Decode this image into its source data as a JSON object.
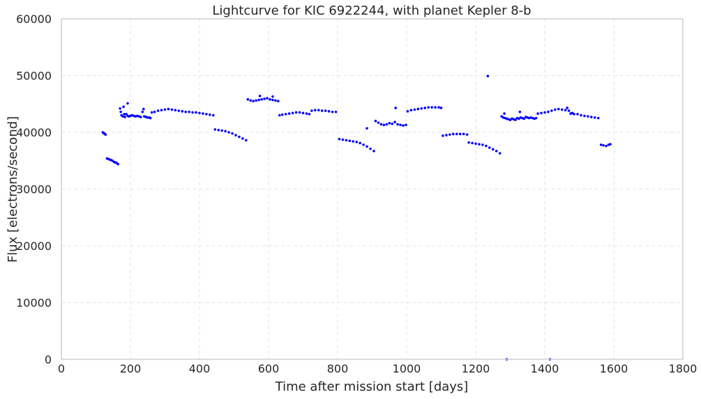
{
  "chart_data": {
    "type": "scatter",
    "title": "Lightcurve for KIC 6922244, with planet Kepler 8-b",
    "xlabel": "Time after mission start [days]",
    "ylabel": "Flux [electrons/second]",
    "xlim": [
      0,
      1800
    ],
    "ylim": [
      0,
      60000
    ],
    "x_ticks": [
      0,
      200,
      400,
      600,
      800,
      1000,
      1200,
      1400,
      1600,
      1800
    ],
    "x_tick_labels": [
      "0",
      "200",
      "400",
      "600",
      "800",
      "1000",
      "1200",
      "1400",
      "1600",
      "1800"
    ],
    "y_ticks": [
      0,
      10000,
      20000,
      30000,
      40000,
      50000,
      60000
    ],
    "y_tick_labels": [
      "0",
      "10000",
      "20000",
      "30000",
      "40000",
      "50000",
      "60000"
    ],
    "grid": true,
    "marker_color": "#0000ff",
    "series": [
      {
        "values": [
          [
            120,
            40000
          ],
          [
            122,
            39900
          ],
          [
            124,
            39800
          ],
          [
            126,
            39700
          ],
          [
            128,
            39600
          ],
          [
            132,
            35400
          ],
          [
            136,
            35300
          ],
          [
            140,
            35200
          ],
          [
            144,
            35100
          ],
          [
            148,
            35000
          ],
          [
            152,
            34800
          ],
          [
            156,
            34700
          ],
          [
            160,
            34600
          ],
          [
            164,
            34400
          ],
          [
            170,
            44200
          ],
          [
            172,
            43600
          ],
          [
            174,
            43000
          ],
          [
            178,
            42800
          ],
          [
            180,
            44500
          ],
          [
            182,
            43200
          ],
          [
            184,
            42700
          ],
          [
            188,
            43200
          ],
          [
            192,
            42900
          ],
          [
            196,
            42800
          ],
          [
            200,
            42900
          ],
          [
            205,
            43000
          ],
          [
            210,
            42900
          ],
          [
            215,
            42800
          ],
          [
            220,
            42900
          ],
          [
            225,
            42800
          ],
          [
            230,
            42700
          ],
          [
            235,
            43600
          ],
          [
            240,
            42800
          ],
          [
            245,
            42700
          ],
          [
            250,
            42600
          ],
          [
            255,
            42600
          ],
          [
            258,
            42500
          ],
          [
            262,
            43500
          ],
          [
            270,
            43600
          ],
          [
            280,
            43800
          ],
          [
            290,
            43900
          ],
          [
            300,
            44000
          ],
          [
            310,
            44100
          ],
          [
            320,
            44000
          ],
          [
            330,
            43900
          ],
          [
            340,
            43800
          ],
          [
            350,
            43700
          ],
          [
            360,
            43600
          ],
          [
            370,
            43600
          ],
          [
            380,
            43500
          ],
          [
            390,
            43500
          ],
          [
            400,
            43400
          ],
          [
            410,
            43300
          ],
          [
            420,
            43200
          ],
          [
            430,
            43100
          ],
          [
            440,
            43000
          ],
          [
            445,
            40500
          ],
          [
            455,
            40400
          ],
          [
            465,
            40300
          ],
          [
            475,
            40200
          ],
          [
            485,
            40000
          ],
          [
            495,
            39800
          ],
          [
            505,
            39500
          ],
          [
            515,
            39200
          ],
          [
            525,
            38900
          ],
          [
            535,
            38600
          ],
          [
            540,
            45800
          ],
          [
            548,
            45600
          ],
          [
            556,
            45500
          ],
          [
            564,
            45600
          ],
          [
            572,
            45700
          ],
          [
            580,
            45800
          ],
          [
            588,
            45900
          ],
          [
            596,
            46000
          ],
          [
            604,
            45800
          ],
          [
            612,
            45700
          ],
          [
            620,
            45600
          ],
          [
            628,
            45500
          ],
          [
            632,
            43000
          ],
          [
            640,
            43100
          ],
          [
            650,
            43200
          ],
          [
            660,
            43300
          ],
          [
            670,
            43400
          ],
          [
            680,
            43500
          ],
          [
            690,
            43500
          ],
          [
            700,
            43400
          ],
          [
            710,
            43300
          ],
          [
            718,
            43200
          ],
          [
            725,
            43800
          ],
          [
            735,
            43900
          ],
          [
            745,
            43900
          ],
          [
            755,
            43800
          ],
          [
            765,
            43800
          ],
          [
            775,
            43700
          ],
          [
            785,
            43600
          ],
          [
            795,
            43600
          ],
          [
            805,
            38800
          ],
          [
            815,
            38700
          ],
          [
            825,
            38600
          ],
          [
            835,
            38500
          ],
          [
            845,
            38400
          ],
          [
            855,
            38300
          ],
          [
            865,
            38100
          ],
          [
            875,
            37800
          ],
          [
            885,
            37500
          ],
          [
            895,
            37100
          ],
          [
            905,
            36700
          ],
          [
            910,
            42000
          ],
          [
            918,
            41700
          ],
          [
            926,
            41400
          ],
          [
            934,
            41300
          ],
          [
            942,
            41400
          ],
          [
            950,
            41600
          ],
          [
            958,
            41500
          ],
          [
            966,
            41800
          ],
          [
            974,
            41400
          ],
          [
            982,
            41300
          ],
          [
            990,
            41200
          ],
          [
            998,
            41300
          ],
          [
            1003,
            43700
          ],
          [
            1013,
            43900
          ],
          [
            1023,
            44000
          ],
          [
            1033,
            44100
          ],
          [
            1043,
            44200
          ],
          [
            1053,
            44300
          ],
          [
            1063,
            44400
          ],
          [
            1073,
            44400
          ],
          [
            1083,
            44400
          ],
          [
            1093,
            44400
          ],
          [
            1100,
            44300
          ],
          [
            1105,
            39400
          ],
          [
            1115,
            39500
          ],
          [
            1125,
            39600
          ],
          [
            1135,
            39700
          ],
          [
            1145,
            39700
          ],
          [
            1155,
            39700
          ],
          [
            1165,
            39700
          ],
          [
            1175,
            39600
          ],
          [
            1180,
            38200
          ],
          [
            1190,
            38100
          ],
          [
            1200,
            38000
          ],
          [
            1210,
            37900
          ],
          [
            1220,
            37800
          ],
          [
            1230,
            37600
          ],
          [
            1240,
            37300
          ],
          [
            1250,
            37000
          ],
          [
            1260,
            36700
          ],
          [
            1270,
            36300
          ],
          [
            1275,
            42800
          ],
          [
            1280,
            42600
          ],
          [
            1285,
            42500
          ],
          [
            1290,
            42400
          ],
          [
            1295,
            42300
          ],
          [
            1300,
            42200
          ],
          [
            1305,
            42400
          ],
          [
            1310,
            42300
          ],
          [
            1315,
            42200
          ],
          [
            1320,
            42500
          ],
          [
            1325,
            42400
          ],
          [
            1330,
            42600
          ],
          [
            1335,
            42500
          ],
          [
            1340,
            42400
          ],
          [
            1345,
            42700
          ],
          [
            1350,
            42600
          ],
          [
            1355,
            42500
          ],
          [
            1360,
            42600
          ],
          [
            1365,
            42500
          ],
          [
            1370,
            42400
          ],
          [
            1375,
            42500
          ],
          [
            1380,
            43300
          ],
          [
            1390,
            43400
          ],
          [
            1400,
            43500
          ],
          [
            1410,
            43600
          ],
          [
            1420,
            43800
          ],
          [
            1430,
            44000
          ],
          [
            1440,
            44100
          ],
          [
            1450,
            44000
          ],
          [
            1460,
            43900
          ],
          [
            1470,
            43800
          ],
          [
            1475,
            43300
          ],
          [
            1480,
            43400
          ],
          [
            1485,
            43200
          ],
          [
            1495,
            43200
          ],
          [
            1505,
            43000
          ],
          [
            1515,
            42900
          ],
          [
            1525,
            42800
          ],
          [
            1535,
            42700
          ],
          [
            1545,
            42600
          ],
          [
            1555,
            42500
          ],
          [
            1563,
            37800
          ],
          [
            1570,
            37700
          ],
          [
            1578,
            37600
          ],
          [
            1585,
            37800
          ],
          [
            1590,
            37900
          ],
          [
            192,
            45100
          ],
          [
            238,
            44100
          ],
          [
            575,
            46400
          ],
          [
            612,
            46300
          ],
          [
            885,
            40700
          ],
          [
            968,
            44300
          ],
          [
            1235,
            49900
          ],
          [
            1283,
            43300
          ],
          [
            1328,
            43600
          ],
          [
            1465,
            44300
          ],
          [
            1290,
            0
          ],
          [
            1415,
            0
          ]
        ]
      }
    ]
  }
}
